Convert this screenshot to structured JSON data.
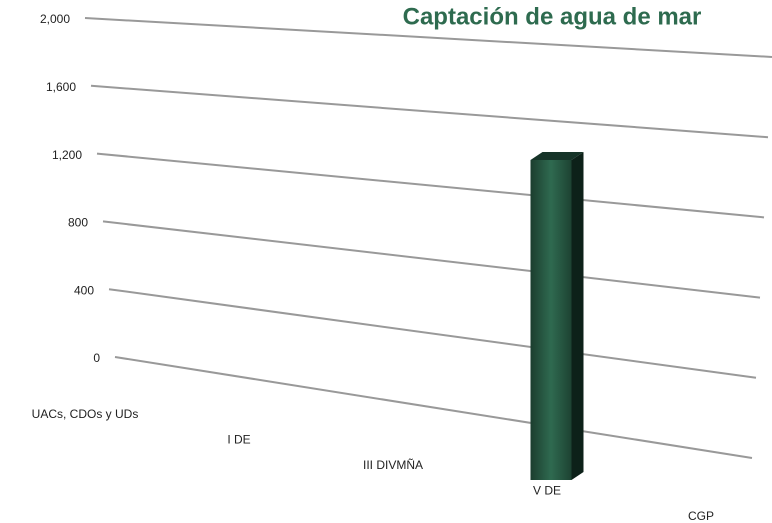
{
  "chart_data": {
    "type": "bar3d",
    "title": "Captación de agua de mar",
    "categories": [
      "UACs, CDOs y UDs",
      "I DE",
      "III DIVMÑA",
      "V DE",
      "CGP"
    ],
    "values": [
      0,
      0,
      0,
      1250,
      0
    ],
    "color": "#24503d",
    "ylim": [
      0,
      2000
    ],
    "yticks": [
      0,
      400,
      800,
      {
        "value": 1200,
        "label": "1,200"
      },
      {
        "value": 1600,
        "label": "1,600"
      },
      {
        "value": 2000,
        "label": "2,000"
      }
    ],
    "grid": true
  }
}
